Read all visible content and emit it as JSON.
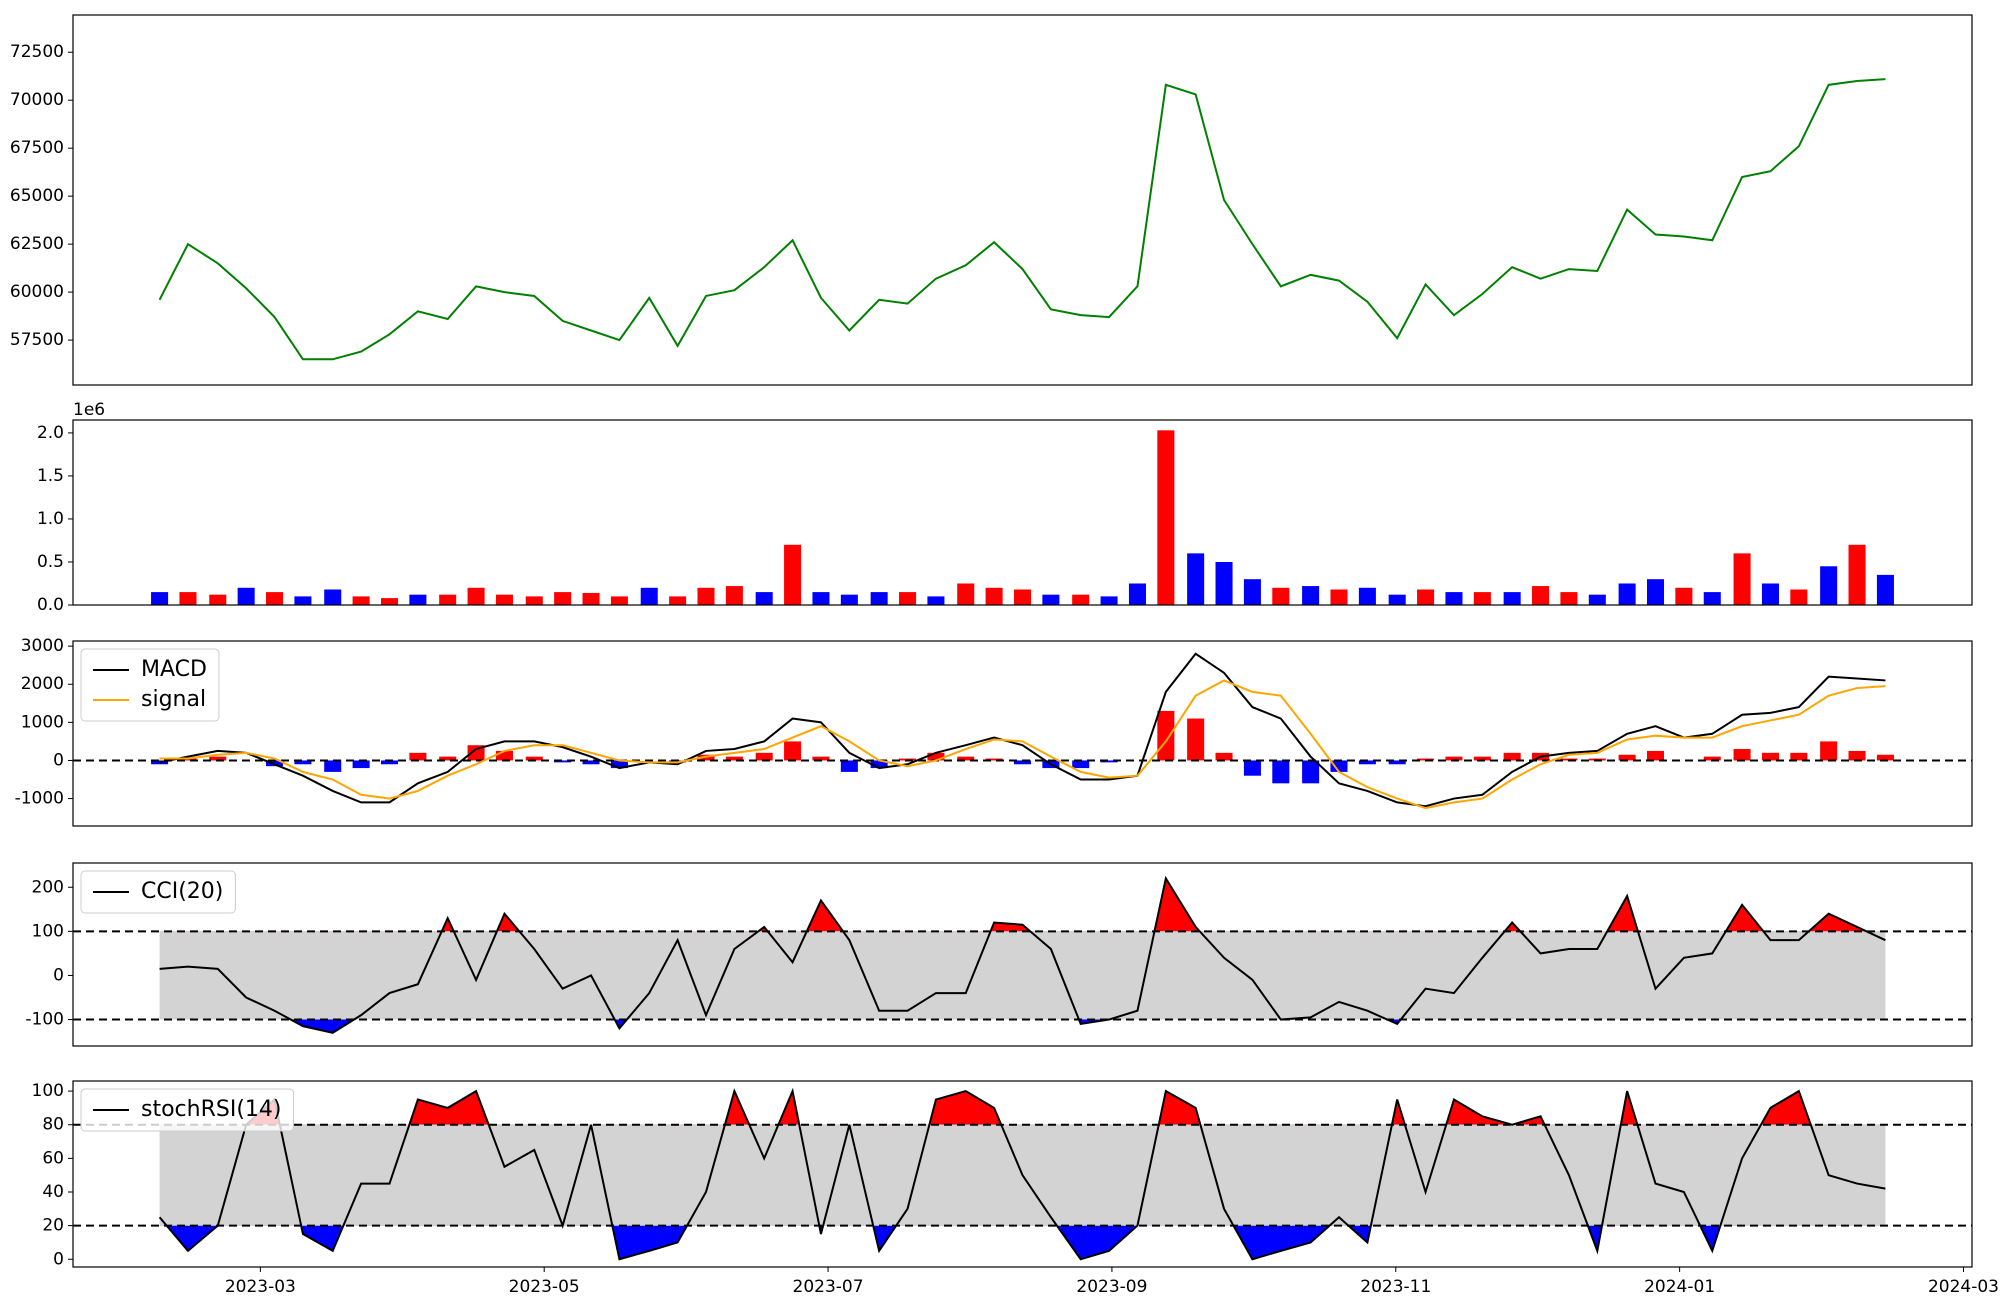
{
  "chart_data": [
    {
      "type": "line",
      "x": [
        2.29,
        2.49,
        2.7,
        2.9,
        3.1,
        3.3,
        3.51,
        3.71,
        3.91,
        4.11,
        4.32,
        4.52,
        4.72,
        4.93,
        5.13,
        5.33,
        5.53,
        5.74,
        5.94,
        6.14,
        6.34,
        6.55,
        6.75,
        6.95,
        7.15,
        7.36,
        7.56,
        7.76,
        7.97,
        8.17,
        8.37,
        8.57,
        8.78,
        8.98,
        9.18,
        9.38,
        9.59,
        9.79,
        9.99,
        10.19,
        10.4,
        10.6,
        10.8,
        11.01,
        11.21,
        11.41,
        11.61,
        11.82,
        12.02,
        12.22,
        12.42,
        12.63,
        12.83,
        13.03,
        13.23,
        13.44,
        13.64,
        13.84,
        14.05,
        14.25,
        14.45
      ],
      "xlim": [
        1.68,
        15.06
      ],
      "ylim": [
        55160,
        74440
      ],
      "yticks": [
        57500,
        60000,
        62500,
        65000,
        67500,
        70000,
        72500
      ],
      "series": [
        {
          "color": "#008000",
          "values": [
            59600,
            62500,
            61500,
            60200,
            58700,
            56500,
            56500,
            56900,
            57800,
            59000,
            58600,
            60300,
            60000,
            59800,
            58500,
            58000,
            57500,
            59700,
            57200,
            59800,
            60100,
            61300,
            62700,
            59700,
            58000,
            59600,
            59400,
            60700,
            61400,
            62600,
            61200,
            59100,
            58800,
            58700,
            60300,
            70800,
            70300,
            64800,
            62500,
            60300,
            60900,
            60600,
            59500,
            57600,
            60400,
            58800,
            59900,
            61300,
            60700,
            61200,
            61100,
            64300,
            63000,
            62900,
            62700,
            66000,
            66300,
            67600,
            70800,
            71000,
            71100
          ]
        }
      ]
    },
    {
      "type": "bar",
      "x": [
        2.29,
        2.49,
        2.7,
        2.9,
        3.1,
        3.3,
        3.51,
        3.71,
        3.91,
        4.11,
        4.32,
        4.52,
        4.72,
        4.93,
        5.13,
        5.33,
        5.53,
        5.74,
        5.94,
        6.14,
        6.34,
        6.55,
        6.75,
        6.95,
        7.15,
        7.36,
        7.56,
        7.76,
        7.97,
        8.17,
        8.37,
        8.57,
        8.78,
        8.98,
        9.18,
        9.38,
        9.59,
        9.79,
        9.99,
        10.19,
        10.4,
        10.6,
        10.8,
        11.01,
        11.21,
        11.41,
        11.61,
        11.82,
        12.02,
        12.22,
        12.42,
        12.63,
        12.83,
        13.03,
        13.23,
        13.44,
        13.64,
        13.84,
        14.05,
        14.25,
        14.45
      ],
      "xlim": [
        1.68,
        15.06
      ],
      "ylim": [
        0,
        2.15
      ],
      "yticks": [
        {
          "value": 0,
          "label": "0.0"
        },
        {
          "value": 0.5,
          "label": "0.5"
        },
        {
          "value": 1,
          "label": "1.0"
        },
        {
          "value": 1.5,
          "label": "1.5"
        },
        {
          "value": 2,
          "label": "2.0"
        }
      ],
      "offset_label": "1e6",
      "values": [
        0.15,
        0.15,
        0.12,
        0.2,
        0.15,
        0.1,
        0.18,
        0.1,
        0.08,
        0.12,
        0.12,
        0.2,
        0.12,
        0.1,
        0.15,
        0.14,
        0.1,
        0.2,
        0.1,
        0.2,
        0.22,
        0.15,
        0.7,
        0.15,
        0.12,
        0.15,
        0.15,
        0.1,
        0.25,
        0.2,
        0.18,
        0.12,
        0.12,
        0.1,
        0.25,
        2.03,
        0.6,
        0.5,
        0.3,
        0.2,
        0.22,
        0.18,
        0.2,
        0.12,
        0.18,
        0.15,
        0.15,
        0.15,
        0.22,
        0.15,
        0.12,
        0.25,
        0.3,
        0.2,
        0.15,
        0.6,
        0.25,
        0.18,
        0.45,
        0.7,
        0.35
      ],
      "colors": [
        "blue",
        "red",
        "red",
        "blue",
        "red",
        "blue",
        "blue",
        "red",
        "red",
        "blue",
        "red",
        "red",
        "red",
        "red",
        "red",
        "red",
        "red",
        "blue",
        "red",
        "red",
        "red",
        "blue",
        "red",
        "blue",
        "blue",
        "blue",
        "red",
        "blue",
        "red",
        "red",
        "red",
        "blue",
        "red",
        "blue",
        "blue",
        "red",
        "blue",
        "blue",
        "blue",
        "red",
        "blue",
        "red",
        "blue",
        "blue",
        "red",
        "blue",
        "red",
        "blue",
        "red",
        "red",
        "blue",
        "blue",
        "blue",
        "red",
        "blue",
        "red",
        "blue",
        "red",
        "blue",
        "red",
        "blue"
      ]
    },
    {
      "type": "line",
      "x": [
        2.29,
        2.49,
        2.7,
        2.9,
        3.1,
        3.3,
        3.51,
        3.71,
        3.91,
        4.11,
        4.32,
        4.52,
        4.72,
        4.93,
        5.13,
        5.33,
        5.53,
        5.74,
        5.94,
        6.14,
        6.34,
        6.55,
        6.75,
        6.95,
        7.15,
        7.36,
        7.56,
        7.76,
        7.97,
        8.17,
        8.37,
        8.57,
        8.78,
        8.98,
        9.18,
        9.38,
        9.59,
        9.79,
        9.99,
        10.19,
        10.4,
        10.6,
        10.8,
        11.01,
        11.21,
        11.41,
        11.61,
        11.82,
        12.02,
        12.22,
        12.42,
        12.63,
        12.83,
        13.03,
        13.23,
        13.44,
        13.64,
        13.84,
        14.05,
        14.25,
        14.45
      ],
      "xlim": [
        1.68,
        15.06
      ],
      "ylim": [
        -1720,
        3135
      ],
      "yticks": [
        -1000,
        0,
        1000,
        2000,
        3000
      ],
      "hlines": [
        0
      ],
      "histogram": {
        "pos_color": "red",
        "neg_color": "blue",
        "values": [
          -100,
          50,
          100,
          0,
          -150,
          -100,
          -300,
          -200,
          -100,
          200,
          100,
          400,
          250,
          100,
          -50,
          -100,
          -200,
          0,
          -50,
          150,
          100,
          200,
          500,
          100,
          -300,
          -200,
          50,
          200,
          100,
          50,
          -100,
          -200,
          -200,
          -50,
          0,
          1300,
          1100,
          200,
          -400,
          -600,
          -600,
          -300,
          -100,
          -100,
          50,
          100,
          100,
          200,
          200,
          50,
          50,
          150,
          250,
          0,
          100,
          300,
          200,
          200,
          500,
          250,
          150
        ]
      },
      "series": [
        {
          "name": "MACD",
          "color": "black",
          "values": [
            -50,
            100,
            250,
            200,
            -100,
            -400,
            -800,
            -1100,
            -1100,
            -600,
            -300,
            300,
            500,
            500,
            350,
            100,
            -200,
            -50,
            -100,
            250,
            300,
            500,
            1100,
            1000,
            200,
            -200,
            -100,
            200,
            400,
            600,
            400,
            -100,
            -500,
            -500,
            -400,
            1800,
            2800,
            2300,
            1400,
            1100,
            100,
            -600,
            -800,
            -1100,
            -1200,
            -1000,
            -900,
            -300,
            100,
            200,
            250,
            700,
            900,
            600,
            700,
            1200,
            1250,
            1400,
            2200,
            2150,
            2100
          ]
        },
        {
          "name": "signal",
          "color": "orange",
          "values": [
            50,
            50,
            150,
            200,
            50,
            -300,
            -500,
            -900,
            -1000,
            -800,
            -400,
            -100,
            250,
            400,
            400,
            200,
            0,
            -50,
            -50,
            100,
            200,
            300,
            600,
            900,
            500,
            0,
            -150,
            0,
            300,
            550,
            500,
            100,
            -300,
            -450,
            -400,
            500,
            1700,
            2100,
            1800,
            1700,
            700,
            -300,
            -700,
            -1000,
            -1250,
            -1100,
            -1000,
            -500,
            -100,
            150,
            200,
            550,
            650,
            600,
            600,
            900,
            1050,
            1200,
            1700,
            1900,
            1950
          ]
        }
      ]
    },
    {
      "type": "line",
      "x": [
        2.29,
        2.49,
        2.7,
        2.9,
        3.1,
        3.3,
        3.51,
        3.71,
        3.91,
        4.11,
        4.32,
        4.52,
        4.72,
        4.93,
        5.13,
        5.33,
        5.53,
        5.74,
        5.94,
        6.14,
        6.34,
        6.55,
        6.75,
        6.95,
        7.15,
        7.36,
        7.56,
        7.76,
        7.97,
        8.17,
        8.37,
        8.57,
        8.78,
        8.98,
        9.18,
        9.38,
        9.59,
        9.79,
        9.99,
        10.19,
        10.4,
        10.6,
        10.8,
        11.01,
        11.21,
        11.41,
        11.61,
        11.82,
        12.02,
        12.22,
        12.42,
        12.63,
        12.83,
        13.03,
        13.23,
        13.44,
        13.64,
        13.84,
        14.05,
        14.25,
        14.45
      ],
      "xlim": [
        1.68,
        15.06
      ],
      "ylim": [
        -160,
        255
      ],
      "yticks": [
        -100,
        0,
        100,
        200
      ],
      "hlines": [
        -100,
        100
      ],
      "band_color": "#d3d3d3",
      "above_color": "red",
      "below_color": "blue",
      "series": [
        {
          "name": "CCI(20)",
          "color": "black",
          "values": [
            15,
            20,
            15,
            -50,
            -80,
            -115,
            -130,
            -90,
            -40,
            -20,
            130,
            -10,
            140,
            60,
            -30,
            0,
            -120,
            -40,
            80,
            -90,
            60,
            110,
            30,
            170,
            80,
            -80,
            -80,
            -40,
            -40,
            120,
            115,
            60,
            -110,
            -100,
            -80,
            220,
            110,
            40,
            -10,
            -100,
            -95,
            -60,
            -80,
            -110,
            -30,
            -40,
            40,
            120,
            50,
            60,
            60,
            180,
            -30,
            40,
            50,
            160,
            80,
            80,
            140,
            110,
            80
          ]
        }
      ]
    },
    {
      "type": "line",
      "x": [
        2.29,
        2.49,
        2.7,
        2.9,
        3.1,
        3.3,
        3.51,
        3.71,
        3.91,
        4.11,
        4.32,
        4.52,
        4.72,
        4.93,
        5.13,
        5.33,
        5.53,
        5.74,
        5.94,
        6.14,
        6.34,
        6.55,
        6.75,
        6.95,
        7.15,
        7.36,
        7.56,
        7.76,
        7.97,
        8.17,
        8.37,
        8.57,
        8.78,
        8.98,
        9.18,
        9.38,
        9.59,
        9.79,
        9.99,
        10.19,
        10.4,
        10.6,
        10.8,
        11.01,
        11.21,
        11.41,
        11.61,
        11.82,
        12.02,
        12.22,
        12.42,
        12.63,
        12.83,
        13.03,
        13.23,
        13.44,
        13.64,
        13.84,
        14.05,
        14.25,
        14.45
      ],
      "xlim": [
        1.68,
        15.06
      ],
      "xticks": [
        {
          "value": 3,
          "label": "2023-03"
        },
        {
          "value": 5,
          "label": "2023-05"
        },
        {
          "value": 7,
          "label": "2023-07"
        },
        {
          "value": 9,
          "label": "2023-09"
        },
        {
          "value": 11,
          "label": "2023-11"
        },
        {
          "value": 13,
          "label": "2024-01"
        },
        {
          "value": 15,
          "label": "2024-03"
        }
      ],
      "ylim": [
        -4.6,
        106
      ],
      "yticks": [
        0,
        20,
        40,
        60,
        80,
        100
      ],
      "hlines": [
        20,
        80
      ],
      "band_color": "#d3d3d3",
      "above_color": "red",
      "below_color": "blue",
      "series": [
        {
          "name": "stochRSI(14)",
          "color": "black",
          "values": [
            25,
            5,
            20,
            80,
            95,
            15,
            5,
            45,
            45,
            95,
            90,
            100,
            55,
            65,
            20,
            80,
            0,
            5,
            10,
            40,
            100,
            60,
            100,
            15,
            80,
            5,
            30,
            95,
            100,
            90,
            50,
            25,
            0,
            5,
            20,
            100,
            90,
            30,
            0,
            5,
            10,
            25,
            10,
            95,
            40,
            95,
            85,
            80,
            85,
            50,
            5,
            100,
            45,
            40,
            5,
            60,
            90,
            100,
            50,
            45,
            42
          ]
        }
      ]
    }
  ]
}
